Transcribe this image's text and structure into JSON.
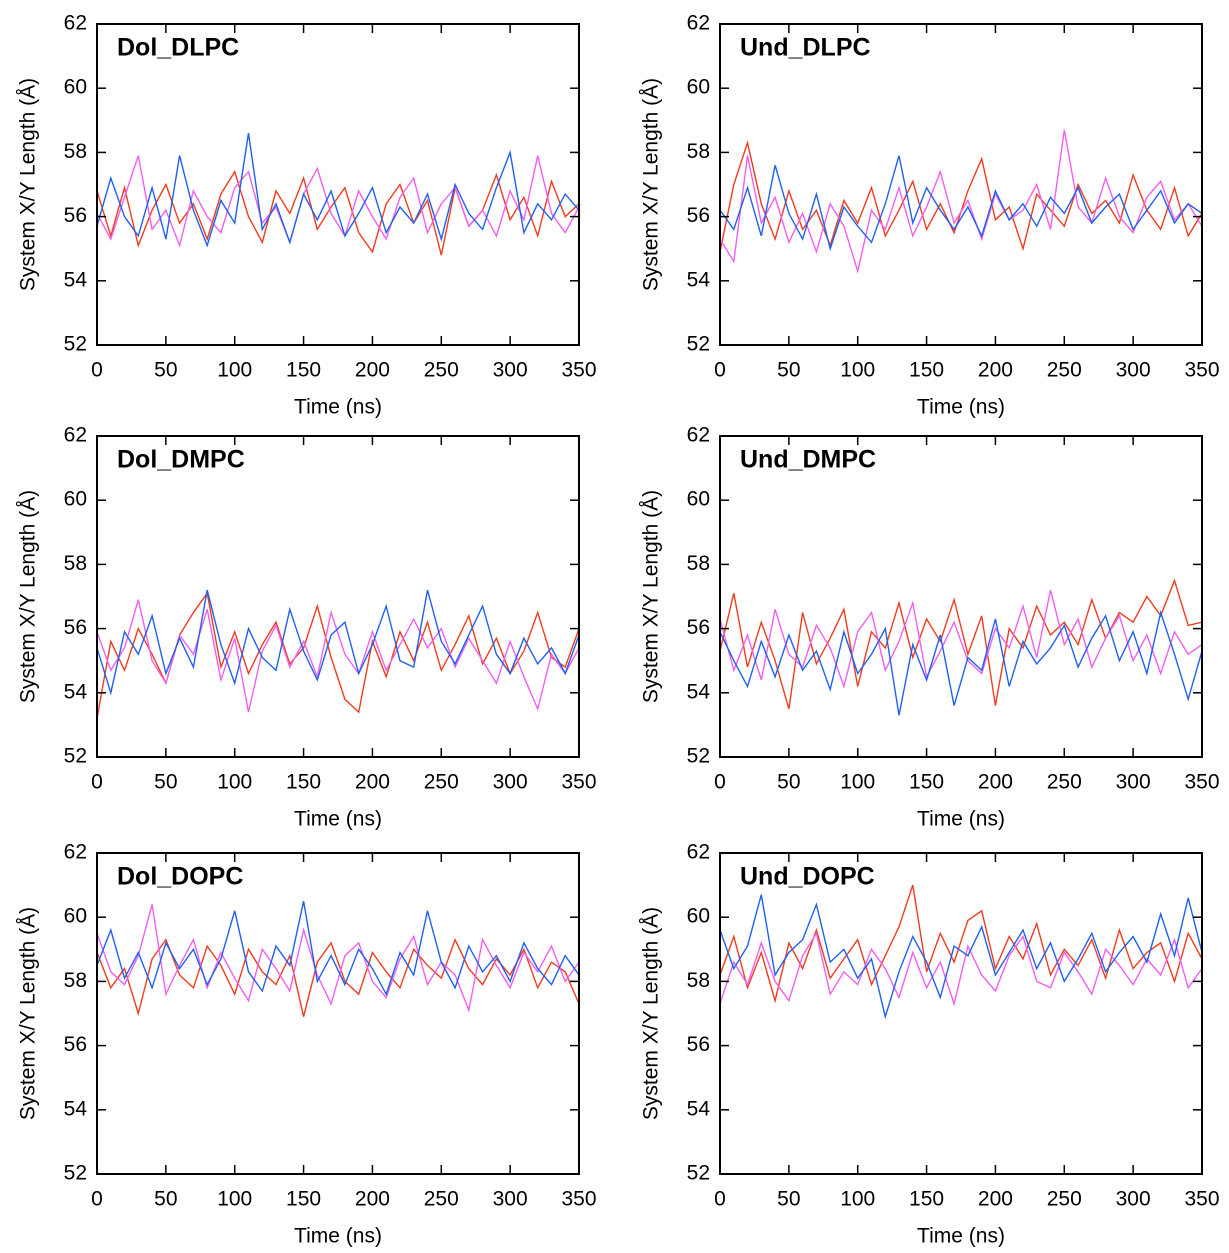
{
  "chart_data": [
    {
      "type": "line",
      "title": "Dol_DLPC",
      "xlabel": "Time (ns)",
      "ylabel": "System X/Y Length (Å)",
      "x": [
        0,
        10,
        20,
        30,
        40,
        50,
        60,
        70,
        80,
        90,
        100,
        110,
        120,
        130,
        140,
        150,
        160,
        170,
        180,
        190,
        200,
        210,
        220,
        230,
        240,
        250,
        260,
        270,
        280,
        290,
        300,
        310,
        320,
        330,
        340,
        350
      ],
      "xlim": [
        0,
        350
      ],
      "ylim": [
        52,
        62
      ],
      "xticks": [
        0,
        50,
        100,
        150,
        200,
        250,
        300,
        350
      ],
      "yticks": [
        52,
        54,
        56,
        58,
        60,
        62
      ],
      "series": [
        {
          "color": "#f03c1e",
          "values": [
            56.8,
            55.4,
            56.9,
            55.1,
            56.2,
            57.0,
            55.8,
            56.4,
            55.3,
            56.7,
            57.4,
            56.0,
            55.2,
            56.8,
            56.1,
            57.2,
            55.6,
            56.3,
            56.9,
            55.5,
            54.9,
            56.4,
            57.0,
            55.8,
            56.5,
            54.8,
            56.9,
            55.7,
            56.2,
            57.3,
            55.9,
            56.6,
            55.4,
            57.1,
            56.0,
            56.4
          ]
        },
        {
          "color": "#f060f0",
          "values": [
            56.1,
            55.3,
            56.6,
            57.9,
            55.6,
            56.2,
            55.1,
            56.8,
            56.0,
            55.5,
            56.9,
            57.4,
            55.8,
            56.3,
            55.2,
            56.7,
            57.5,
            56.1,
            55.4,
            56.8,
            56.0,
            55.3,
            56.6,
            57.2,
            55.5,
            56.4,
            56.9,
            55.7,
            56.2,
            55.4,
            56.8,
            55.9,
            57.9,
            56.1,
            55.5,
            56.3
          ]
        },
        {
          "color": "#2060f0",
          "values": [
            55.7,
            57.2,
            56.0,
            55.4,
            56.9,
            55.3,
            57.9,
            56.2,
            55.1,
            56.5,
            55.8,
            58.6,
            55.6,
            56.4,
            55.2,
            56.7,
            55.9,
            56.8,
            55.4,
            56.1,
            56.9,
            55.5,
            56.3,
            55.8,
            56.7,
            55.3,
            57.0,
            56.1,
            55.6,
            56.9,
            58.0,
            55.5,
            56.4,
            55.9,
            56.7,
            56.2
          ]
        }
      ]
    },
    {
      "type": "line",
      "title": "Und_DLPC",
      "xlabel": "Time (ns)",
      "ylabel": "System X/Y Length (Å)",
      "x": [
        0,
        10,
        20,
        30,
        40,
        50,
        60,
        70,
        80,
        90,
        100,
        110,
        120,
        130,
        140,
        150,
        160,
        170,
        180,
        190,
        200,
        210,
        220,
        230,
        240,
        250,
        260,
        270,
        280,
        290,
        300,
        310,
        320,
        330,
        340,
        350
      ],
      "xlim": [
        0,
        350
      ],
      "ylim": [
        52,
        62
      ],
      "xticks": [
        0,
        50,
        100,
        150,
        200,
        250,
        300,
        350
      ],
      "yticks": [
        52,
        54,
        56,
        58,
        60,
        62
      ],
      "series": [
        {
          "color": "#f03c1e",
          "values": [
            54.9,
            57.0,
            58.3,
            56.4,
            55.3,
            56.8,
            55.6,
            56.2,
            55.1,
            56.5,
            55.8,
            56.9,
            55.4,
            56.2,
            57.1,
            55.6,
            56.4,
            55.5,
            56.8,
            57.8,
            55.9,
            56.3,
            55.0,
            56.7,
            56.2,
            55.7,
            57.0,
            56.1,
            56.5,
            55.8,
            57.3,
            56.2,
            55.6,
            56.9,
            55.4,
            56.1
          ]
        },
        {
          "color": "#f060f0",
          "values": [
            55.3,
            54.6,
            57.9,
            55.8,
            56.6,
            55.2,
            56.1,
            54.9,
            56.4,
            55.7,
            54.3,
            56.2,
            55.6,
            56.9,
            55.4,
            56.3,
            57.4,
            55.8,
            56.5,
            55.3,
            56.7,
            55.9,
            56.2,
            57.0,
            55.6,
            58.7,
            56.3,
            55.8,
            57.2,
            56.0,
            55.5,
            56.6,
            57.1,
            55.9,
            56.4,
            55.7
          ]
        },
        {
          "color": "#2060f0",
          "values": [
            56.2,
            55.6,
            56.9,
            55.4,
            57.6,
            56.1,
            55.3,
            56.7,
            55.0,
            56.3,
            55.7,
            55.2,
            56.4,
            57.9,
            55.8,
            56.9,
            56.2,
            55.6,
            56.3,
            55.4,
            56.8,
            55.9,
            56.4,
            55.7,
            56.6,
            56.1,
            56.9,
            55.8,
            56.3,
            56.7,
            55.6,
            56.2,
            56.8,
            55.8,
            56.4,
            56.1
          ]
        }
      ]
    },
    {
      "type": "line",
      "title": "Dol_DMPC",
      "xlabel": "Time (ns)",
      "ylabel": "System X/Y Length (Å)",
      "x": [
        0,
        10,
        20,
        30,
        40,
        50,
        60,
        70,
        80,
        90,
        100,
        110,
        120,
        130,
        140,
        150,
        160,
        170,
        180,
        190,
        200,
        210,
        220,
        230,
        240,
        250,
        260,
        270,
        280,
        290,
        300,
        310,
        320,
        330,
        340,
        350
      ],
      "xlim": [
        0,
        350
      ],
      "ylim": [
        52,
        62
      ],
      "xticks": [
        0,
        50,
        100,
        150,
        200,
        250,
        300,
        350
      ],
      "yticks": [
        52,
        54,
        56,
        58,
        60,
        62
      ],
      "series": [
        {
          "color": "#f03c1e",
          "values": [
            53.2,
            55.6,
            54.7,
            56.0,
            55.2,
            54.3,
            55.8,
            56.5,
            57.1,
            54.8,
            55.9,
            54.6,
            55.5,
            56.2,
            54.9,
            55.4,
            56.7,
            55.1,
            53.8,
            53.4,
            55.6,
            54.5,
            55.9,
            55.0,
            56.2,
            54.7,
            55.5,
            56.4,
            54.9,
            55.7,
            54.6,
            55.3,
            56.5,
            55.1,
            54.8,
            56.0
          ]
        },
        {
          "color": "#f060f0",
          "values": [
            55.9,
            54.7,
            55.4,
            56.9,
            55.0,
            54.3,
            55.8,
            55.2,
            56.6,
            54.4,
            55.7,
            53.4,
            55.3,
            56.1,
            54.8,
            55.6,
            54.5,
            56.5,
            55.2,
            54.6,
            55.9,
            54.7,
            55.5,
            56.3,
            55.4,
            56.0,
            54.8,
            55.7,
            55.0,
            54.3,
            55.6,
            54.5,
            53.5,
            55.2,
            54.6,
            55.4
          ]
        },
        {
          "color": "#2060f0",
          "values": [
            55.4,
            54.0,
            55.9,
            55.2,
            56.4,
            54.6,
            55.7,
            54.8,
            57.2,
            55.5,
            54.3,
            56.0,
            55.1,
            54.7,
            56.6,
            55.3,
            54.4,
            55.8,
            56.2,
            54.6,
            55.5,
            56.7,
            55.0,
            54.8,
            57.2,
            55.6,
            54.9,
            55.8,
            56.7,
            55.2,
            54.6,
            55.7,
            54.9,
            55.4,
            54.6,
            55.8
          ]
        }
      ]
    },
    {
      "type": "line",
      "title": "Und_DMPC",
      "xlabel": "Time (ns)",
      "ylabel": "System X/Y Length (Å)",
      "x": [
        0,
        10,
        20,
        30,
        40,
        50,
        60,
        70,
        80,
        90,
        100,
        110,
        120,
        130,
        140,
        150,
        160,
        170,
        180,
        190,
        200,
        210,
        220,
        230,
        240,
        250,
        260,
        270,
        280,
        290,
        300,
        310,
        320,
        330,
        340,
        350
      ],
      "xlim": [
        0,
        350
      ],
      "ylim": [
        52,
        62
      ],
      "xticks": [
        0,
        50,
        100,
        150,
        200,
        250,
        300,
        350
      ],
      "yticks": [
        52,
        54,
        56,
        58,
        60,
        62
      ],
      "series": [
        {
          "color": "#f03c1e",
          "values": [
            55.3,
            57.1,
            54.8,
            56.2,
            55.0,
            53.5,
            56.5,
            54.9,
            55.7,
            56.6,
            54.2,
            55.9,
            55.4,
            56.8,
            55.1,
            56.3,
            55.6,
            56.9,
            55.2,
            56.4,
            53.6,
            56.0,
            55.4,
            56.7,
            55.8,
            56.2,
            55.5,
            56.9,
            55.7,
            56.5,
            56.2,
            57.0,
            56.4,
            57.5,
            56.1,
            56.2
          ]
        },
        {
          "color": "#f060f0",
          "values": [
            56.3,
            54.7,
            55.8,
            54.4,
            56.6,
            55.2,
            54.8,
            56.1,
            55.4,
            54.2,
            55.9,
            56.5,
            54.7,
            55.6,
            56.8,
            54.5,
            55.3,
            56.2,
            55.0,
            54.6,
            56.0,
            55.4,
            56.7,
            55.1,
            57.2,
            55.5,
            56.3,
            54.8,
            55.7,
            56.4,
            55.0,
            55.8,
            54.6,
            55.9,
            55.2,
            55.5
          ]
        },
        {
          "color": "#2060f0",
          "values": [
            55.9,
            55.0,
            54.2,
            55.6,
            54.5,
            55.8,
            54.7,
            55.3,
            54.1,
            55.9,
            54.6,
            55.2,
            56.0,
            53.3,
            55.5,
            54.4,
            55.8,
            53.6,
            55.1,
            54.7,
            56.3,
            54.2,
            55.6,
            54.9,
            55.4,
            56.1,
            54.8,
            55.7,
            56.4,
            55.0,
            55.9,
            54.6,
            56.5,
            55.2,
            53.8,
            55.3
          ]
        }
      ]
    },
    {
      "type": "line",
      "title": "Dol_DOPC",
      "xlabel": "Time (ns)",
      "ylabel": "System X/Y Length (Å)",
      "x": [
        0,
        10,
        20,
        30,
        40,
        50,
        60,
        70,
        80,
        90,
        100,
        110,
        120,
        130,
        140,
        150,
        160,
        170,
        180,
        190,
        200,
        210,
        220,
        230,
        240,
        250,
        260,
        270,
        280,
        290,
        300,
        310,
        320,
        330,
        340,
        350
      ],
      "xlim": [
        0,
        350
      ],
      "ylim": [
        52,
        62
      ],
      "xticks": [
        0,
        50,
        100,
        150,
        200,
        250,
        300,
        350
      ],
      "yticks": [
        52,
        54,
        56,
        58,
        60,
        62
      ],
      "series": [
        {
          "color": "#f03c1e",
          "values": [
            58.9,
            57.8,
            58.4,
            57.0,
            58.7,
            59.3,
            58.2,
            57.8,
            59.1,
            58.5,
            57.6,
            59.0,
            58.3,
            57.9,
            58.8,
            56.9,
            58.6,
            59.2,
            58.0,
            57.6,
            58.9,
            58.3,
            57.8,
            59.0,
            58.5,
            58.1,
            59.3,
            58.4,
            57.9,
            58.7,
            58.2,
            59.0,
            57.8,
            58.6,
            58.3,
            57.3
          ]
        },
        {
          "color": "#f060f0",
          "values": [
            59.5,
            58.3,
            57.9,
            58.8,
            60.4,
            57.6,
            58.5,
            59.3,
            57.8,
            58.9,
            58.1,
            57.4,
            59.0,
            58.4,
            57.7,
            59.6,
            58.2,
            57.3,
            58.8,
            59.2,
            58.0,
            57.5,
            58.7,
            59.4,
            57.9,
            58.6,
            58.2,
            57.1,
            59.3,
            58.5,
            57.8,
            58.9,
            58.3,
            59.1,
            58.0,
            58.6
          ]
        },
        {
          "color": "#2060f0",
          "values": [
            58.5,
            59.6,
            58.1,
            58.9,
            57.8,
            59.2,
            58.4,
            59.0,
            57.9,
            58.7,
            60.2,
            58.3,
            57.7,
            59.1,
            58.5,
            60.5,
            58.0,
            58.8,
            57.9,
            59.0,
            58.4,
            57.6,
            58.9,
            58.2,
            60.2,
            58.6,
            57.8,
            59.1,
            58.3,
            58.8,
            58.0,
            59.2,
            58.4,
            57.9,
            58.8,
            58.2
          ]
        }
      ]
    },
    {
      "type": "line",
      "title": "Und_DOPC",
      "xlabel": "Time (ns)",
      "ylabel": "System X/Y Length (Å)",
      "x": [
        0,
        10,
        20,
        30,
        40,
        50,
        60,
        70,
        80,
        90,
        100,
        110,
        120,
        130,
        140,
        150,
        160,
        170,
        180,
        190,
        200,
        210,
        220,
        230,
        240,
        250,
        260,
        270,
        280,
        290,
        300,
        310,
        320,
        330,
        340,
        350
      ],
      "xlim": [
        0,
        350
      ],
      "ylim": [
        52,
        62
      ],
      "xticks": [
        0,
        50,
        100,
        150,
        200,
        250,
        300,
        350
      ],
      "yticks": [
        52,
        54,
        56,
        58,
        60,
        62
      ],
      "series": [
        {
          "color": "#f03c1e",
          "values": [
            58.2,
            59.4,
            57.8,
            58.9,
            57.4,
            59.2,
            58.4,
            59.6,
            58.1,
            58.7,
            59.3,
            57.9,
            58.8,
            59.7,
            61.0,
            58.3,
            59.5,
            58.6,
            59.9,
            60.2,
            58.4,
            59.4,
            58.7,
            59.8,
            58.2,
            59.0,
            58.5,
            59.3,
            58.1,
            59.6,
            58.4,
            58.9,
            59.2,
            58.0,
            59.5,
            58.7
          ]
        },
        {
          "color": "#f060f0",
          "values": [
            57.3,
            58.6,
            57.9,
            59.2,
            58.0,
            57.4,
            58.8,
            59.5,
            57.6,
            58.3,
            57.9,
            59.0,
            58.4,
            57.5,
            58.9,
            57.8,
            58.6,
            57.3,
            59.1,
            58.2,
            57.7,
            58.8,
            59.4,
            58.0,
            57.8,
            58.9,
            58.3,
            57.6,
            59.0,
            58.5,
            57.9,
            58.7,
            58.2,
            59.3,
            57.8,
            58.4
          ]
        },
        {
          "color": "#2060f0",
          "values": [
            59.6,
            58.4,
            59.1,
            60.7,
            58.2,
            58.9,
            59.3,
            60.4,
            58.6,
            59.0,
            58.1,
            58.7,
            56.9,
            58.3,
            59.4,
            58.6,
            57.5,
            59.1,
            58.8,
            59.7,
            58.2,
            58.9,
            59.6,
            58.4,
            59.2,
            58.0,
            58.7,
            59.5,
            58.3,
            58.9,
            59.4,
            58.6,
            60.1,
            58.8,
            60.6,
            58.9
          ]
        }
      ]
    }
  ]
}
